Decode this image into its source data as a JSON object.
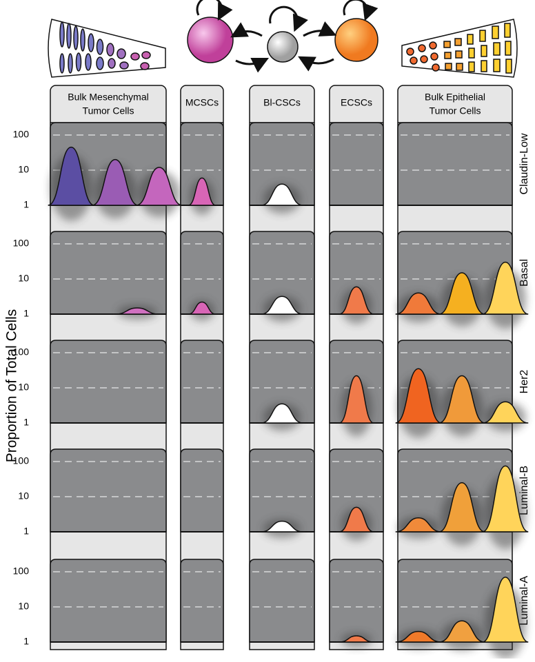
{
  "y_axis_label": "Proportion  of  Total  Cells",
  "yticks": [
    1,
    10,
    100
  ],
  "log_scale": true,
  "columns": [
    [
      "Bulk Mesenchymal",
      "Tumor Cells"
    ],
    [
      "MCSCs"
    ],
    [
      "Bl-CSCs"
    ],
    [
      "ECSCs"
    ],
    [
      "Bulk Epithelial",
      "Tumor Cells"
    ]
  ],
  "rows": [
    {
      "name": "Claudin-Low",
      "cells": [
        [
          {
            "value": 45,
            "color": "#5b4ea3"
          },
          {
            "value": 20,
            "color": "#9a5cb4"
          },
          {
            "value": 12,
            "color": "#c466bd"
          }
        ],
        [
          {
            "value": 6,
            "color": "#d865b6"
          }
        ],
        [
          {
            "value": 4,
            "color": "#ffffff"
          }
        ],
        [],
        []
      ]
    },
    {
      "name": "Basal",
      "cells": [
        [
          {
            "value": 1.5,
            "color": "#d070c0"
          }
        ],
        [
          {
            "value": 2.2,
            "color": "#d865b6"
          }
        ],
        [
          {
            "value": 3.2,
            "color": "#ffffff"
          }
        ],
        [
          {
            "value": 6,
            "color": "#f07a4a"
          }
        ],
        [
          {
            "value": 4,
            "color": "#f07a3a"
          },
          {
            "value": 15,
            "color": "#f5b020"
          },
          {
            "value": 30,
            "color": "#ffd45a"
          }
        ]
      ]
    },
    {
      "name": "Her2",
      "cells": [
        [],
        [],
        [
          {
            "value": 3.5,
            "color": "#ffffff"
          }
        ],
        [
          {
            "value": 22,
            "color": "#f07a4a"
          }
        ],
        [
          {
            "value": 35,
            "color": "#f06420"
          },
          {
            "value": 22,
            "color": "#f09a3a"
          },
          {
            "value": 4,
            "color": "#ffd45a"
          }
        ]
      ]
    },
    {
      "name": "Luminal-B",
      "cells": [
        [],
        [],
        [
          {
            "value": 2,
            "color": "#ffffff"
          }
        ],
        [
          {
            "value": 5,
            "color": "#f07a4a"
          }
        ],
        [
          {
            "value": 2.5,
            "color": "#f08a3a"
          },
          {
            "value": 25,
            "color": "#f0a03a"
          },
          {
            "value": 75,
            "color": "#ffd45a"
          }
        ]
      ]
    },
    {
      "name": "Luminal-A",
      "cells": [
        [],
        [],
        [],
        [
          {
            "value": 1.5,
            "color": "#f07a4a"
          }
        ],
        [
          {
            "value": 2,
            "color": "#f07a2a"
          },
          {
            "value": 4,
            "color": "#f0a040"
          },
          {
            "value": 70,
            "color": "#ffd45a"
          }
        ]
      ]
    }
  ]
}
